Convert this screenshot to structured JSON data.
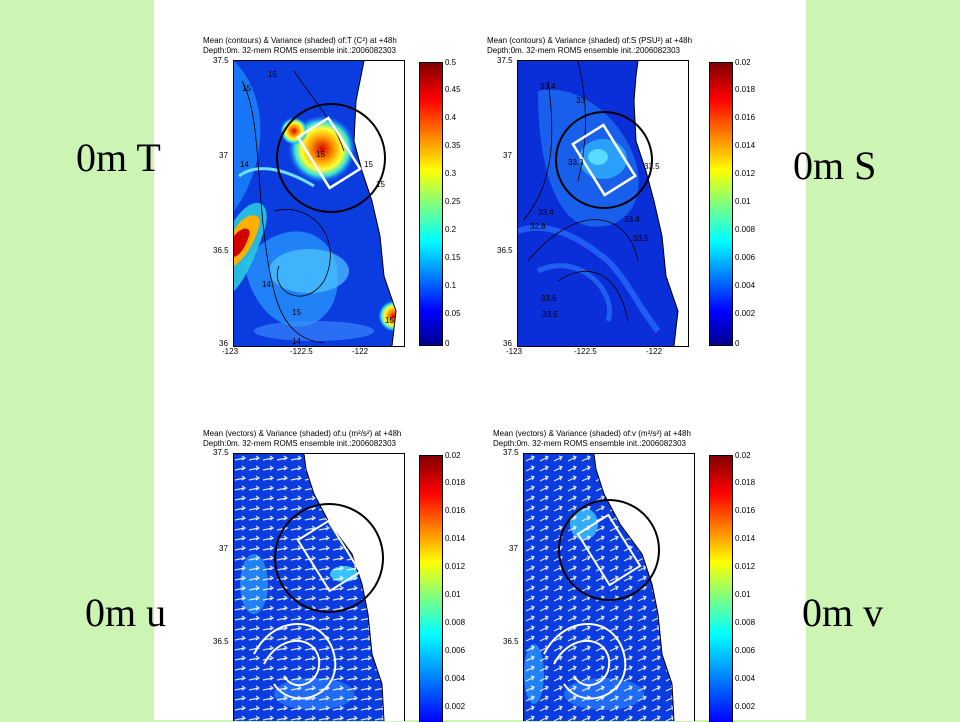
{
  "labels": {
    "t": "0m T",
    "s": "0m S",
    "u": "0m u",
    "v": "0m v"
  },
  "panels": {
    "t": {
      "title1": "Mean (contours) & Variance (shaded) of:T (C²) at +48h",
      "title2": "Depth:0m. 32-mem ROMS ensemble init.:2006082303",
      "yticks": [
        "37.5",
        "37",
        "36.5",
        "36"
      ],
      "xticks": [
        "-123",
        "-122.5",
        "-122"
      ],
      "cbar": [
        "0.5",
        "0.45",
        "0.4",
        "0.35",
        "0.3",
        "0.25",
        "0.2",
        "0.15",
        "0.1",
        "0.05",
        "0"
      ],
      "contours": [
        "15",
        "15",
        "14",
        "15",
        "15",
        "14",
        "15",
        "15",
        "14",
        "15"
      ]
    },
    "s": {
      "title1": "Mean (contours) & Variance (shaded) of:S (PSU²) at +48h",
      "title2": "Depth:0m. 32-mem ROMS ensemble init.:2006082303",
      "yticks": [
        "37.5",
        "37",
        "36.5",
        "36"
      ],
      "xticks": [
        "-123",
        "-122.5",
        "-122"
      ],
      "cbar": [
        "0.02",
        "0.018",
        "0.016",
        "0.014",
        "0.012",
        "0.01",
        "0.008",
        "0.006",
        "0.004",
        "0.002",
        "0"
      ],
      "contours": [
        "33.4",
        "33",
        "33.3",
        "33.4",
        "32.8",
        "33.4",
        "33.6",
        "33.5",
        "33.5",
        "33.5"
      ]
    },
    "u": {
      "title1": "Mean (vectors) & Variance (shaded) of:u (m²/s²) at +48h",
      "title2": "Depth:0m. 32-mem ROMS ensemble init.:2006082303",
      "yticks": [
        "37.5",
        "37",
        "36.5"
      ],
      "cbar": [
        "0.02",
        "0.018",
        "0.016",
        "0.014",
        "0.012",
        "0.01",
        "0.008",
        "0.006",
        "0.004",
        "0.002"
      ]
    },
    "v": {
      "title1": "Mean (vectors) & Variance (shaded) of:v (m²/s²) at +48h",
      "title2": "Depth:0m. 32-mem ROMS ensemble init.:2006082303",
      "yticks": [
        "37.5",
        "37",
        "36.5"
      ],
      "cbar": [
        "0.02",
        "0.018",
        "0.016",
        "0.014",
        "0.012",
        "0.01",
        "0.008",
        "0.006",
        "0.004",
        "0.002"
      ]
    }
  },
  "colors": {
    "background": "#ccf5b4",
    "land": "#ffffff",
    "field_low": "#0a2fd6",
    "field_high": "#d40000"
  }
}
